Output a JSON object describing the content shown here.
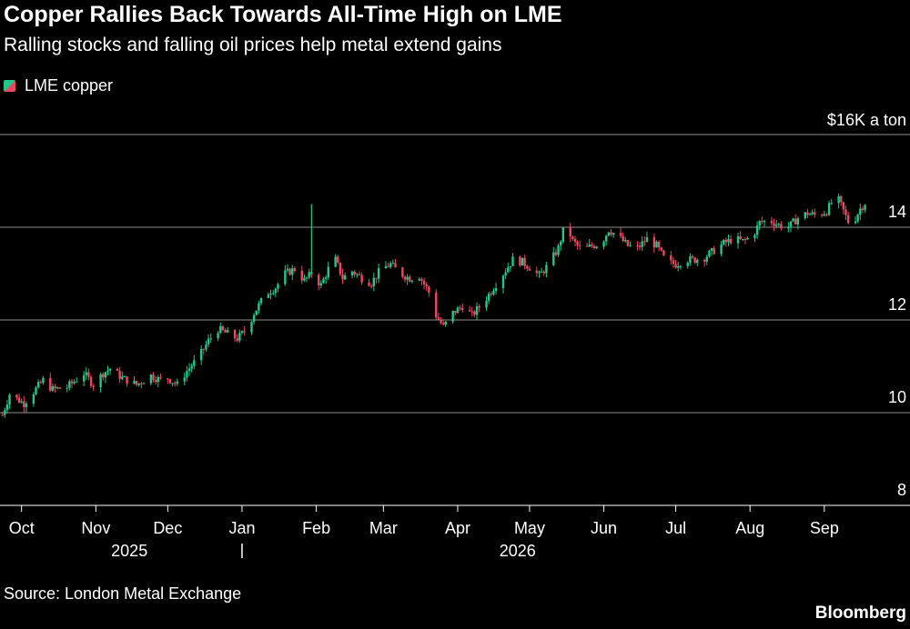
{
  "header": {
    "title": "Copper Rallies Back Towards All-Time High on LME",
    "subtitle": "Ralling stocks and falling oil prices help metal extend gains"
  },
  "legend": {
    "label": "LME copper"
  },
  "footer": {
    "source": "Source: London Metal Exchange",
    "brand": "Bloomberg"
  },
  "colors": {
    "up": "#22c88a",
    "down": "#e84b5f",
    "grid": "#8c8c8c",
    "axis": "#ffffff",
    "background": "#000000"
  },
  "chart_data": {
    "type": "candlestick",
    "ylim": [
      8,
      16
    ],
    "y_ticks": [
      {
        "value": 16,
        "label": "$16K a ton"
      },
      {
        "value": 14,
        "label": "14"
      },
      {
        "value": 12,
        "label": "12"
      },
      {
        "value": 10,
        "label": "10"
      },
      {
        "value": 8,
        "label": "8"
      }
    ],
    "x_range": [
      "2025-09-22",
      "2026-10-06"
    ],
    "months": [
      {
        "date": "2025-10-01",
        "label": "Oct"
      },
      {
        "date": "2025-11-01",
        "label": "Nov"
      },
      {
        "date": "2025-12-01",
        "label": "Dec"
      },
      {
        "date": "2026-01-01",
        "label": "Jan"
      },
      {
        "date": "2026-02-01",
        "label": "Feb"
      },
      {
        "date": "2026-03-01",
        "label": "Mar"
      },
      {
        "date": "2026-04-01",
        "label": "Apr"
      },
      {
        "date": "2026-05-01",
        "label": "May"
      },
      {
        "date": "2026-06-01",
        "label": "Jun"
      },
      {
        "date": "2026-07-01",
        "label": "Jul"
      },
      {
        "date": "2026-08-01",
        "label": "Aug"
      },
      {
        "date": "2026-09-01",
        "label": "Sep"
      }
    ],
    "years": [
      {
        "date": "2025-11-15",
        "label": "2025"
      },
      {
        "date": "2026-04-26",
        "label": "2026"
      }
    ],
    "year_divider": "2026-01-01",
    "series": [
      {
        "name": "LME copper",
        "start": "2025-09-23",
        "end": "2026-09-20",
        "path": [
          [
            "2025-09-23",
            9.95
          ],
          [
            "2025-09-26",
            10.4
          ],
          [
            "2025-10-02",
            10.2
          ],
          [
            "2025-10-06",
            10.45
          ],
          [
            "2025-10-10",
            10.7
          ],
          [
            "2025-10-14",
            10.5
          ],
          [
            "2025-10-20",
            10.55
          ],
          [
            "2025-10-27",
            10.85
          ],
          [
            "2025-10-31",
            10.6
          ],
          [
            "2025-11-04",
            10.85
          ],
          [
            "2025-11-07",
            10.95
          ],
          [
            "2025-11-12",
            10.75
          ],
          [
            "2025-11-18",
            10.6
          ],
          [
            "2025-11-24",
            10.8
          ],
          [
            "2025-11-28",
            10.7
          ],
          [
            "2025-12-01",
            10.75
          ],
          [
            "2025-12-05",
            10.6
          ],
          [
            "2025-12-09",
            10.9
          ],
          [
            "2025-12-14",
            11.2
          ],
          [
            "2025-12-18",
            11.55
          ],
          [
            "2025-12-22",
            11.8
          ],
          [
            "2025-12-26",
            11.7
          ],
          [
            "2025-12-30",
            11.6
          ],
          [
            "2026-01-03",
            11.8
          ],
          [
            "2026-01-06",
            12.15
          ],
          [
            "2026-01-09",
            12.4
          ],
          [
            "2026-01-12",
            12.6
          ],
          [
            "2026-01-15",
            12.7
          ],
          [
            "2026-01-19",
            13.0
          ],
          [
            "2026-01-23",
            13.1
          ],
          [
            "2026-01-27",
            12.85
          ],
          [
            "2026-01-30",
            13.0
          ],
          [
            "2026-02-03",
            12.75
          ],
          [
            "2026-02-06",
            13.1
          ],
          [
            "2026-02-09",
            13.3
          ],
          [
            "2026-02-12",
            12.9
          ],
          [
            "2026-02-16",
            13.05
          ],
          [
            "2026-02-20",
            12.9
          ],
          [
            "2026-02-24",
            12.8
          ],
          [
            "2026-02-28",
            13.1
          ],
          [
            "2026-03-04",
            13.2
          ],
          [
            "2026-03-08",
            13.0
          ],
          [
            "2026-03-12",
            12.9
          ],
          [
            "2026-03-16",
            12.95
          ],
          [
            "2026-03-20",
            12.6
          ],
          [
            "2026-03-23",
            12.1
          ],
          [
            "2026-03-26",
            11.85
          ],
          [
            "2026-03-30",
            12.15
          ],
          [
            "2026-04-03",
            12.3
          ],
          [
            "2026-04-07",
            12.1
          ],
          [
            "2026-04-12",
            12.4
          ],
          [
            "2026-04-16",
            12.7
          ],
          [
            "2026-04-20",
            13.0
          ],
          [
            "2026-04-24",
            13.3
          ],
          [
            "2026-04-28",
            13.25
          ],
          [
            "2026-05-02",
            13.1
          ],
          [
            "2026-05-05",
            12.95
          ],
          [
            "2026-05-09",
            13.2
          ],
          [
            "2026-05-13",
            13.55
          ],
          [
            "2026-05-16",
            14.1
          ],
          [
            "2026-05-19",
            13.7
          ],
          [
            "2026-05-23",
            13.5
          ],
          [
            "2026-05-27",
            13.6
          ],
          [
            "2026-05-31",
            13.65
          ],
          [
            "2026-06-03",
            13.95
          ],
          [
            "2026-06-07",
            13.8
          ],
          [
            "2026-06-11",
            13.6
          ],
          [
            "2026-06-15",
            13.55
          ],
          [
            "2026-06-19",
            13.75
          ],
          [
            "2026-06-23",
            13.6
          ],
          [
            "2026-06-27",
            13.25
          ],
          [
            "2026-07-01",
            13.2
          ],
          [
            "2026-07-05",
            13.3
          ],
          [
            "2026-07-09",
            13.3
          ],
          [
            "2026-07-13",
            13.35
          ],
          [
            "2026-07-17",
            13.5
          ],
          [
            "2026-07-21",
            13.65
          ],
          [
            "2026-07-25",
            13.75
          ],
          [
            "2026-07-29",
            13.7
          ],
          [
            "2026-08-02",
            13.8
          ],
          [
            "2026-08-05",
            14.1
          ],
          [
            "2026-08-09",
            14.15
          ],
          [
            "2026-08-13",
            14.05
          ],
          [
            "2026-08-17",
            14.0
          ],
          [
            "2026-08-21",
            14.2
          ],
          [
            "2026-08-25",
            14.3
          ],
          [
            "2026-08-29",
            14.25
          ],
          [
            "2026-09-02",
            14.35
          ],
          [
            "2026-09-06",
            14.7
          ],
          [
            "2026-09-09",
            14.35
          ],
          [
            "2026-09-12",
            14.0
          ],
          [
            "2026-09-16",
            14.4
          ],
          [
            "2026-09-20",
            14.65
          ]
        ]
      }
    ]
  }
}
